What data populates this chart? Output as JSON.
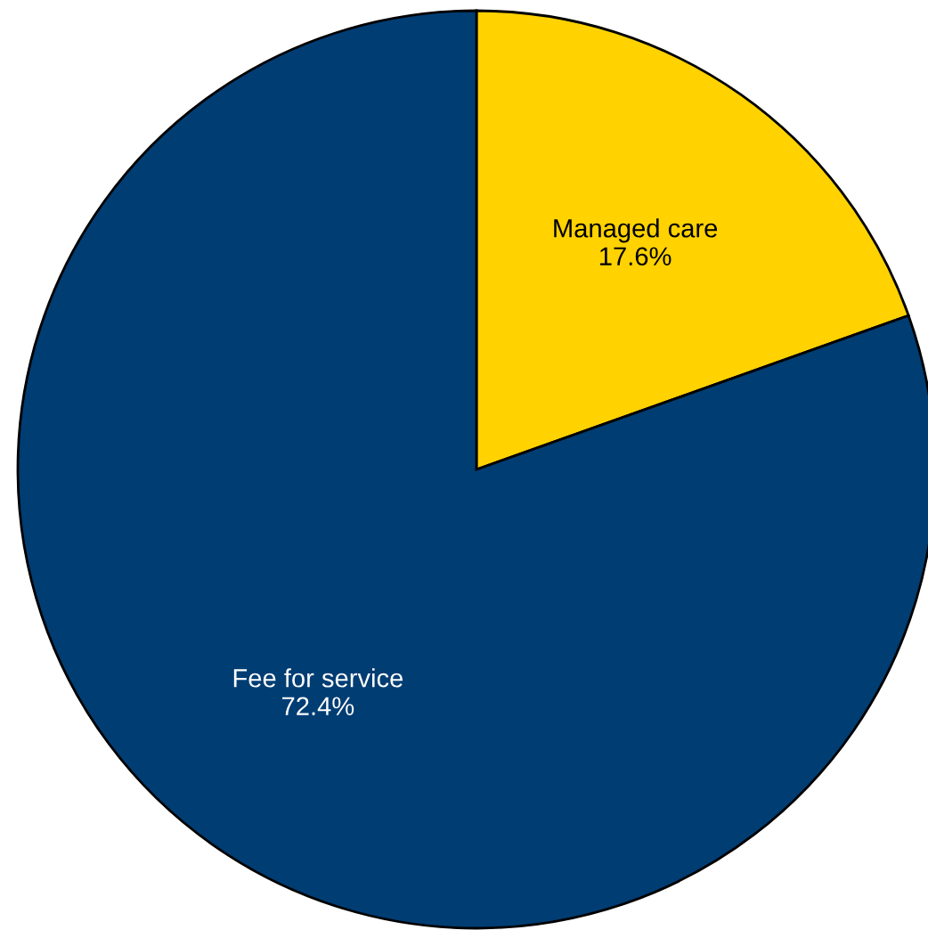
{
  "chart_data": {
    "type": "pie",
    "categories": [
      "Managed care",
      "Fee for service"
    ],
    "values": [
      17.6,
      72.4
    ],
    "colors": [
      "#ffd200",
      "#003d73"
    ],
    "value_labels": [
      "17.6%",
      "72.4%"
    ]
  }
}
